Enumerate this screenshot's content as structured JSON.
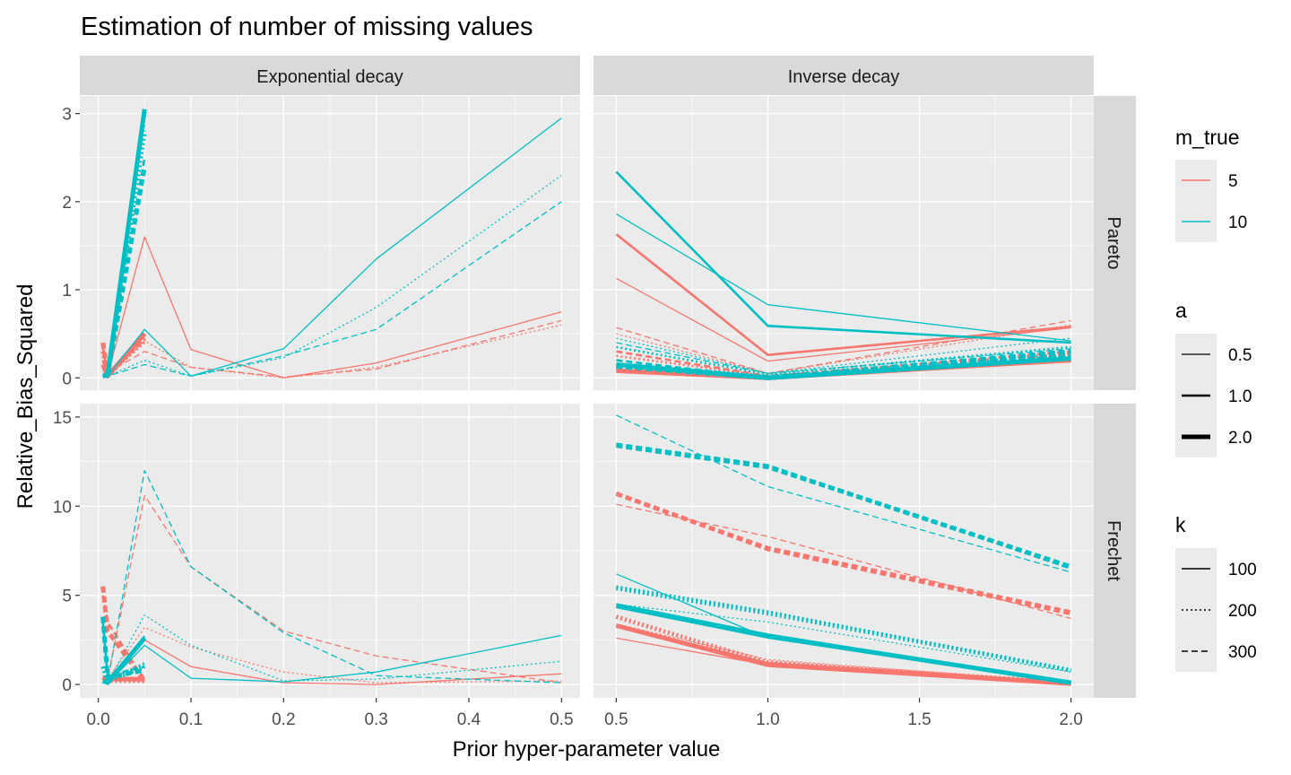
{
  "chart_data": {
    "type": "line",
    "title": "Estimation of number of missing values",
    "xlabel": "Prior hyper-parameter value",
    "ylabel": "Relative_Bias_Squared",
    "facets": {
      "columns": [
        "Exponential decay",
        "Inverse decay"
      ],
      "rows": [
        "Pareto",
        "Frechet"
      ]
    },
    "xlim": {
      "Exponential decay": [
        -0.02,
        0.52
      ],
      "Inverse decay": [
        0.425,
        2.075
      ]
    },
    "ylim": {
      "Pareto": [
        -0.14,
        3.2
      ],
      "Frechet": [
        -0.75,
        15.75
      ]
    },
    "x_ticks": {
      "Exponential decay": [
        "0.0",
        "0.1",
        "0.2",
        "0.3",
        "0.4",
        "0.5"
      ],
      "Inverse decay": [
        "0.5",
        "1.0",
        "1.5",
        "2.0"
      ]
    },
    "y_ticks": {
      "Pareto": [
        "0",
        "1",
        "2",
        "3"
      ],
      "Frechet": [
        "0",
        "5",
        "10",
        "15"
      ]
    },
    "x_values": {
      "Exponential decay": [
        0.005,
        0.01,
        0.05,
        0.1,
        0.2,
        0.3,
        0.5
      ],
      "Inverse decay": [
        0.5,
        1.0,
        2.0
      ]
    },
    "legend": {
      "m_true": {
        "title": "m_true",
        "items": [
          {
            "label": "5",
            "color": "#F8766D"
          },
          {
            "label": "10",
            "color": "#00BFC4"
          }
        ]
      },
      "a": {
        "title": "a",
        "items": [
          {
            "label": "0.5"
          },
          {
            "label": "1.0"
          },
          {
            "label": "2.0"
          }
        ]
      },
      "k": {
        "title": "k",
        "items": [
          {
            "label": "100"
          },
          {
            "label": "200"
          },
          {
            "label": "300"
          }
        ]
      }
    },
    "panels": [
      {
        "col": "Exponential decay",
        "row": "Pareto",
        "series": [
          {
            "m_true": "5",
            "a": "0.5",
            "k": "100",
            "values": [
              0.05,
              0.03,
              1.6,
              0.32,
              0.0,
              0.17,
              0.75
            ]
          },
          {
            "m_true": "5",
            "a": "0.5",
            "k": "200",
            "values": [
              0.1,
              0.05,
              0.42,
              0.12,
              0.0,
              0.12,
              0.6
            ]
          },
          {
            "m_true": "5",
            "a": "0.5",
            "k": "300",
            "values": [
              0.15,
              0.06,
              0.3,
              0.12,
              0.01,
              0.1,
              0.65
            ]
          },
          {
            "m_true": "5",
            "a": "1.0",
            "k": "100",
            "values": [
              0.2,
              0.02,
              0.5,
              null,
              null,
              null,
              null
            ]
          },
          {
            "m_true": "5",
            "a": "1.0",
            "k": "200",
            "values": [
              0.3,
              0.03,
              0.4,
              null,
              null,
              null,
              null
            ]
          },
          {
            "m_true": "5",
            "a": "1.0",
            "k": "300",
            "values": [
              0.35,
              0.03,
              0.45,
              null,
              null,
              null,
              null
            ]
          },
          {
            "m_true": "5",
            "a": "2.0",
            "k": "100",
            "values": [
              0.15,
              0.02,
              0.5,
              null,
              null,
              null,
              null
            ]
          },
          {
            "m_true": "5",
            "a": "2.0",
            "k": "200",
            "values": [
              0.3,
              0.02,
              0.45,
              null,
              null,
              null,
              null
            ]
          },
          {
            "m_true": "5",
            "a": "2.0",
            "k": "300",
            "values": [
              0.4,
              0.02,
              0.5,
              null,
              null,
              null,
              null
            ]
          },
          {
            "m_true": "10",
            "a": "0.5",
            "k": "100",
            "values": [
              0.02,
              0.02,
              0.55,
              0.02,
              0.33,
              1.35,
              2.95
            ]
          },
          {
            "m_true": "10",
            "a": "0.5",
            "k": "200",
            "values": [
              0.02,
              0.02,
              0.2,
              0.02,
              0.23,
              0.8,
              2.3
            ]
          },
          {
            "m_true": "10",
            "a": "0.5",
            "k": "300",
            "values": [
              0.02,
              0.02,
              0.15,
              0.02,
              0.25,
              0.55,
              2.0
            ]
          },
          {
            "m_true": "10",
            "a": "1.0",
            "k": "100",
            "values": [
              0.02,
              0.03,
              3.0,
              null,
              null,
              null,
              null
            ]
          },
          {
            "m_true": "10",
            "a": "1.0",
            "k": "200",
            "values": [
              0.02,
              0.03,
              2.9,
              null,
              null,
              null,
              null
            ]
          },
          {
            "m_true": "10",
            "a": "1.0",
            "k": "300",
            "values": [
              0.02,
              0.03,
              2.5,
              null,
              null,
              null,
              null
            ]
          },
          {
            "m_true": "10",
            "a": "2.0",
            "k": "100",
            "values": [
              0.02,
              0.03,
              3.05,
              null,
              null,
              null,
              null
            ]
          },
          {
            "m_true": "10",
            "a": "2.0",
            "k": "200",
            "values": [
              0.02,
              0.03,
              2.8,
              null,
              null,
              null,
              null
            ]
          },
          {
            "m_true": "10",
            "a": "2.0",
            "k": "300",
            "values": [
              0.02,
              0.03,
              2.4,
              null,
              null,
              null,
              null
            ]
          }
        ]
      },
      {
        "col": "Inverse decay",
        "row": "Pareto",
        "series": [
          {
            "m_true": "5",
            "a": "0.5",
            "k": "100",
            "values": [
              1.13,
              0.19,
              0.57
            ]
          },
          {
            "m_true": "5",
            "a": "0.5",
            "k": "200",
            "values": [
              0.5,
              0.05,
              0.6
            ]
          },
          {
            "m_true": "5",
            "a": "0.5",
            "k": "300",
            "values": [
              0.57,
              0.05,
              0.65
            ]
          },
          {
            "m_true": "5",
            "a": "1.0",
            "k": "100",
            "values": [
              1.63,
              0.26,
              0.58
            ]
          },
          {
            "m_true": "5",
            "a": "1.0",
            "k": "200",
            "values": [
              0.25,
              0.02,
              0.28
            ]
          },
          {
            "m_true": "5",
            "a": "1.0",
            "k": "300",
            "values": [
              0.3,
              0.02,
              0.3
            ]
          },
          {
            "m_true": "5",
            "a": "2.0",
            "k": "100",
            "values": [
              0.08,
              0.0,
              0.2
            ]
          },
          {
            "m_true": "5",
            "a": "2.0",
            "k": "200",
            "values": [
              0.1,
              0.0,
              0.25
            ]
          },
          {
            "m_true": "5",
            "a": "2.0",
            "k": "300",
            "values": [
              0.12,
              0.0,
              0.25
            ]
          },
          {
            "m_true": "10",
            "a": "0.5",
            "k": "100",
            "values": [
              1.86,
              0.83,
              0.42
            ]
          },
          {
            "m_true": "10",
            "a": "0.5",
            "k": "200",
            "values": [
              0.45,
              0.05,
              0.45
            ]
          },
          {
            "m_true": "10",
            "a": "0.5",
            "k": "300",
            "values": [
              0.4,
              0.05,
              0.33
            ]
          },
          {
            "m_true": "10",
            "a": "1.0",
            "k": "100",
            "values": [
              2.34,
              0.59,
              0.4
            ]
          },
          {
            "m_true": "10",
            "a": "1.0",
            "k": "200",
            "values": [
              0.35,
              0.04,
              0.35
            ]
          },
          {
            "m_true": "10",
            "a": "1.0",
            "k": "300",
            "values": [
              0.2,
              0.0,
              0.25
            ]
          },
          {
            "m_true": "10",
            "a": "2.0",
            "k": "100",
            "values": [
              0.15,
              0.0,
              0.22
            ]
          },
          {
            "m_true": "10",
            "a": "2.0",
            "k": "200",
            "values": [
              0.15,
              0.01,
              0.25
            ]
          },
          {
            "m_true": "10",
            "a": "2.0",
            "k": "300",
            "values": [
              0.13,
              0.0,
              0.3
            ]
          }
        ]
      },
      {
        "col": "Exponential decay",
        "row": "Frechet",
        "series": [
          {
            "m_true": "5",
            "a": "0.5",
            "k": "100",
            "values": [
              0.5,
              0.3,
              2.5,
              1.0,
              0.1,
              0.0,
              0.6
            ]
          },
          {
            "m_true": "5",
            "a": "0.5",
            "k": "200",
            "values": [
              0.5,
              0.3,
              3.2,
              2.1,
              0.7,
              0.1,
              0.2
            ]
          },
          {
            "m_true": "5",
            "a": "0.5",
            "k": "300",
            "values": [
              0.5,
              0.3,
              10.6,
              6.6,
              3.0,
              1.6,
              0.1
            ]
          },
          {
            "m_true": "5",
            "a": "1.0",
            "k": "100",
            "values": [
              0.3,
              0.3,
              0.3,
              null,
              null,
              null,
              null
            ]
          },
          {
            "m_true": "5",
            "a": "1.0",
            "k": "200",
            "values": [
              0.4,
              0.3,
              0.2,
              null,
              null,
              null,
              null
            ]
          },
          {
            "m_true": "5",
            "a": "1.0",
            "k": "300",
            "values": [
              5.0,
              3.5,
              0.2,
              null,
              null,
              null,
              null
            ]
          },
          {
            "m_true": "5",
            "a": "2.0",
            "k": "100",
            "values": [
              0.3,
              0.3,
              0.3,
              null,
              null,
              null,
              null
            ]
          },
          {
            "m_true": "5",
            "a": "2.0",
            "k": "200",
            "values": [
              0.4,
              0.2,
              0.2,
              null,
              null,
              null,
              null
            ]
          },
          {
            "m_true": "5",
            "a": "2.0",
            "k": "300",
            "values": [
              5.5,
              3.0,
              0.2,
              null,
              null,
              null,
              null
            ]
          },
          {
            "m_true": "10",
            "a": "0.5",
            "k": "100",
            "values": [
              0.1,
              0.05,
              2.2,
              0.35,
              0.15,
              0.7,
              2.75
            ]
          },
          {
            "m_true": "10",
            "a": "0.5",
            "k": "200",
            "values": [
              0.1,
              0.1,
              3.9,
              2.2,
              0.2,
              0.3,
              1.3
            ]
          },
          {
            "m_true": "10",
            "a": "0.5",
            "k": "300",
            "values": [
              0.1,
              0.1,
              12.0,
              6.6,
              2.9,
              0.5,
              0.1
            ]
          },
          {
            "m_true": "10",
            "a": "1.0",
            "k": "100",
            "values": [
              0.2,
              0.1,
              2.7,
              null,
              null,
              null,
              null
            ]
          },
          {
            "m_true": "10",
            "a": "1.0",
            "k": "200",
            "values": [
              1.0,
              0.2,
              1.2,
              null,
              null,
              null,
              null
            ]
          },
          {
            "m_true": "10",
            "a": "1.0",
            "k": "300",
            "values": [
              3.5,
              0.5,
              1.0,
              null,
              null,
              null,
              null
            ]
          },
          {
            "m_true": "10",
            "a": "2.0",
            "k": "100",
            "values": [
              0.2,
              0.1,
              2.6,
              null,
              null,
              null,
              null
            ]
          },
          {
            "m_true": "10",
            "a": "2.0",
            "k": "200",
            "values": [
              1.0,
              0.2,
              1.0,
              null,
              null,
              null,
              null
            ]
          },
          {
            "m_true": "10",
            "a": "2.0",
            "k": "300",
            "values": [
              3.8,
              0.4,
              0.8,
              null,
              null,
              null,
              null
            ]
          }
        ]
      },
      {
        "col": "Inverse decay",
        "row": "Frechet",
        "series": [
          {
            "m_true": "5",
            "a": "0.5",
            "k": "100",
            "values": [
              2.6,
              1.1,
              0.05
            ]
          },
          {
            "m_true": "5",
            "a": "0.5",
            "k": "200",
            "values": [
              3.4,
              1.4,
              0.1
            ]
          },
          {
            "m_true": "5",
            "a": "0.5",
            "k": "300",
            "values": [
              10.1,
              8.3,
              3.7
            ]
          },
          {
            "m_true": "5",
            "a": "1.0",
            "k": "100",
            "values": [
              3.3,
              1.2,
              0.1
            ]
          },
          {
            "m_true": "5",
            "a": "1.0",
            "k": "200",
            "values": [
              3.8,
              1.3,
              0.1
            ]
          },
          {
            "m_true": "5",
            "a": "1.0",
            "k": "300",
            "values": [
              10.7,
              7.7,
              4.1
            ]
          },
          {
            "m_true": "5",
            "a": "2.0",
            "k": "100",
            "values": [
              3.3,
              1.1,
              0.05
            ]
          },
          {
            "m_true": "5",
            "a": "2.0",
            "k": "200",
            "values": [
              3.8,
              1.2,
              0.1
            ]
          },
          {
            "m_true": "5",
            "a": "2.0",
            "k": "300",
            "values": [
              10.7,
              7.6,
              4.0
            ]
          },
          {
            "m_true": "10",
            "a": "0.5",
            "k": "100",
            "values": [
              6.2,
              2.6,
              0.05
            ]
          },
          {
            "m_true": "10",
            "a": "0.5",
            "k": "200",
            "values": [
              4.5,
              3.5,
              0.7
            ]
          },
          {
            "m_true": "10",
            "a": "0.5",
            "k": "300",
            "values": [
              15.1,
              11.1,
              6.3
            ]
          },
          {
            "m_true": "10",
            "a": "1.0",
            "k": "100",
            "values": [
              4.5,
              2.8,
              0.1
            ]
          },
          {
            "m_true": "10",
            "a": "1.0",
            "k": "200",
            "values": [
              5.5,
              4.1,
              0.8
            ]
          },
          {
            "m_true": "10",
            "a": "1.0",
            "k": "300",
            "values": [
              13.5,
              12.3,
              6.5
            ]
          },
          {
            "m_true": "10",
            "a": "2.0",
            "k": "100",
            "values": [
              4.4,
              2.7,
              0.1
            ]
          },
          {
            "m_true": "10",
            "a": "2.0",
            "k": "200",
            "values": [
              5.4,
              4.0,
              0.8
            ]
          },
          {
            "m_true": "10",
            "a": "2.0",
            "k": "300",
            "values": [
              13.4,
              12.2,
              6.6
            ]
          }
        ]
      }
    ]
  }
}
